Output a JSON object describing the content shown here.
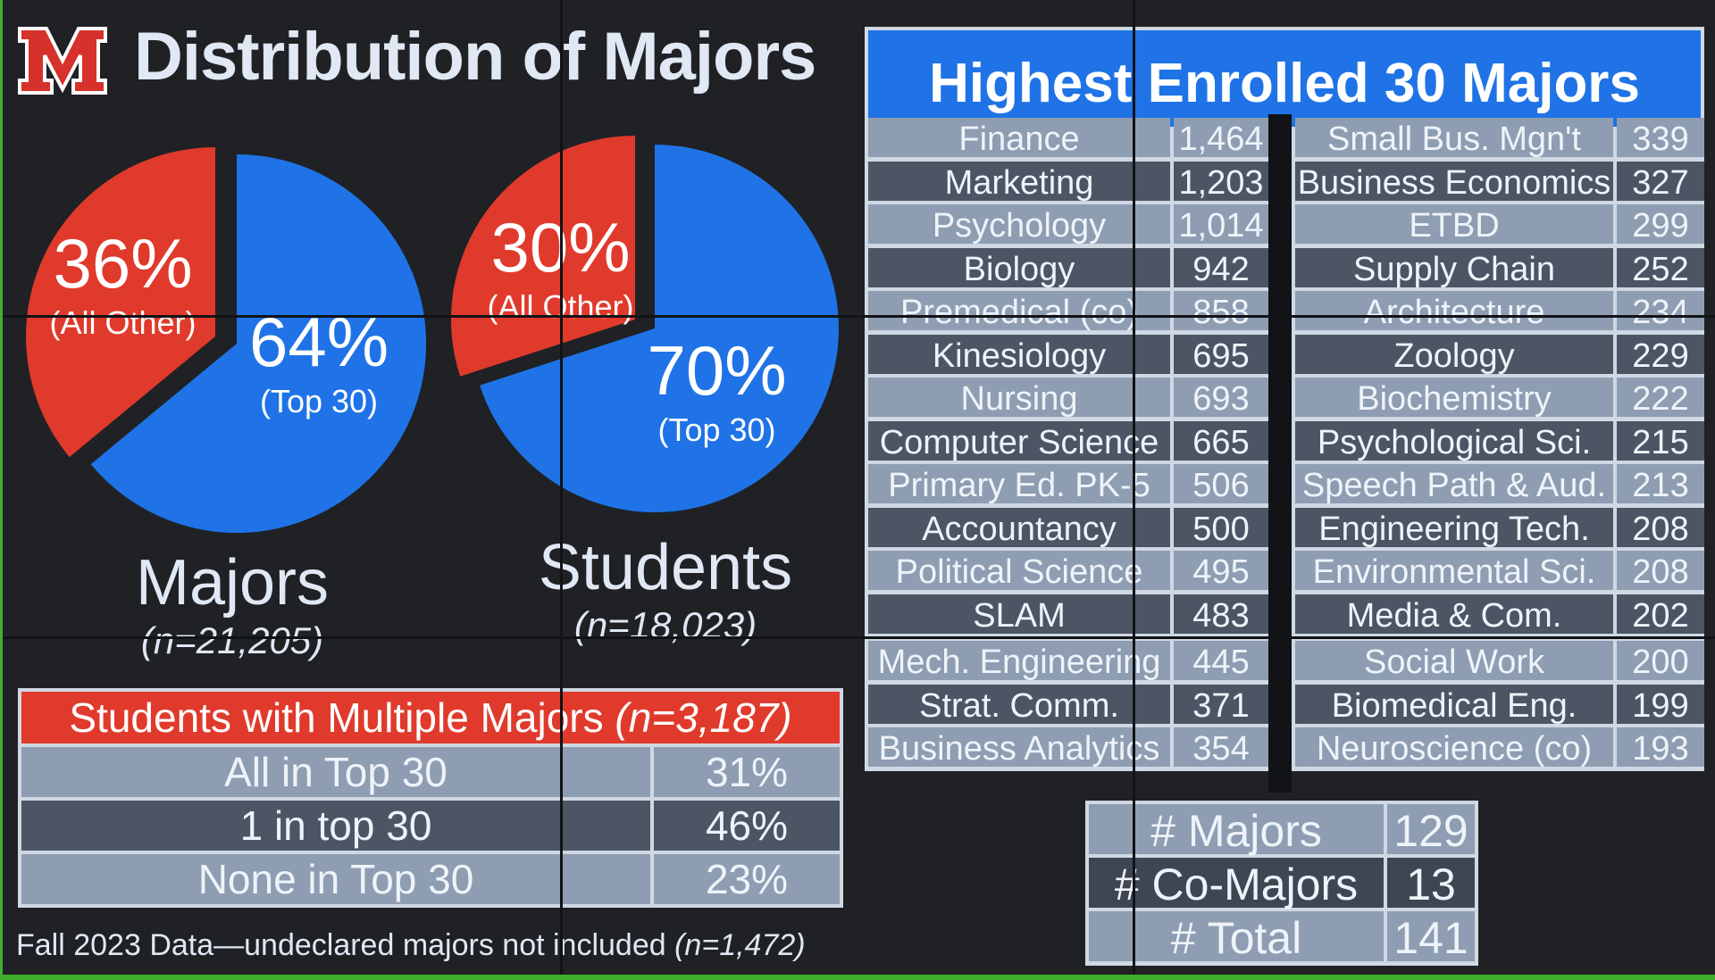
{
  "title": "Distribution of Majors",
  "colors": {
    "top30": "#1f73e6",
    "other": "#e03a2c",
    "logo": "#d6312b"
  },
  "chart_data": [
    {
      "type": "pie",
      "title": "Majors",
      "subtitle": "(n=21,205)",
      "slices": [
        {
          "label": "(All Other)",
          "pct_label": "36%",
          "value": 36,
          "color": "#e03a2c"
        },
        {
          "label": "(Top 30)",
          "pct_label": "64%",
          "value": 64,
          "color": "#1f73e6"
        }
      ]
    },
    {
      "type": "pie",
      "title": "Students",
      "subtitle": "(n=18,023)",
      "slices": [
        {
          "label": "(All Other)",
          "pct_label": "30%",
          "value": 30,
          "color": "#e03a2c"
        },
        {
          "label": "(Top 30)",
          "pct_label": "70%",
          "value": 70,
          "color": "#1f73e6"
        }
      ]
    },
    {
      "type": "table",
      "title": "Highest Enrolled 30 Majors",
      "left": [
        {
          "name": "Finance",
          "value": "1,464"
        },
        {
          "name": "Marketing",
          "value": "1,203"
        },
        {
          "name": "Psychology",
          "value": "1,014"
        },
        {
          "name": "Biology",
          "value": "942"
        },
        {
          "name": "Premedical (co)",
          "value": "858"
        },
        {
          "name": "Kinesiology",
          "value": "695"
        },
        {
          "name": "Nursing",
          "value": "693"
        },
        {
          "name": "Computer Science",
          "value": "665"
        },
        {
          "name": "Primary Ed. PK-5",
          "value": "506"
        },
        {
          "name": "Accountancy",
          "value": "500"
        },
        {
          "name": "Political Science",
          "value": "495"
        },
        {
          "name": "SLAM",
          "value": "483"
        },
        {
          "name": "Mech. Engineering",
          "value": "445"
        },
        {
          "name": "Strat. Comm.",
          "value": "371"
        },
        {
          "name": "Business Analytics",
          "value": "354"
        }
      ],
      "right": [
        {
          "name": "Small Bus. Mgn't",
          "value": "339"
        },
        {
          "name": "Business Economics",
          "value": "327"
        },
        {
          "name": "ETBD",
          "value": "299"
        },
        {
          "name": "Supply Chain",
          "value": "252"
        },
        {
          "name": "Architecture",
          "value": "234"
        },
        {
          "name": "Zoology",
          "value": "229"
        },
        {
          "name": "Biochemistry",
          "value": "222"
        },
        {
          "name": "Psychological Sci.",
          "value": "215"
        },
        {
          "name": "Speech Path & Aud.",
          "value": "213"
        },
        {
          "name": "Engineering Tech.",
          "value": "208"
        },
        {
          "name": "Environmental Sci.",
          "value": "208"
        },
        {
          "name": "Media & Com.",
          "value": "202"
        },
        {
          "name": "Social Work",
          "value": "200"
        },
        {
          "name": "Biomedical Eng.",
          "value": "199"
        },
        {
          "name": "Neuroscience (co)",
          "value": "193"
        }
      ]
    },
    {
      "type": "table",
      "title": "Students with Multiple Majors",
      "title_n": "(n=3,187)",
      "rows": [
        {
          "label": "All in Top 30",
          "value": "31%"
        },
        {
          "label": "1 in top 30",
          "value": "46%"
        },
        {
          "label": "None in Top 30",
          "value": "23%"
        }
      ]
    },
    {
      "type": "table",
      "rows": [
        {
          "label": "# Majors",
          "value": "129"
        },
        {
          "label": "# Co-Majors",
          "value": "13"
        },
        {
          "label": "# Total",
          "value": "141"
        }
      ]
    }
  ],
  "footnote": {
    "text": "Fall 2023 Data—undeclared majors not included",
    "n": "(n=1,472)"
  }
}
